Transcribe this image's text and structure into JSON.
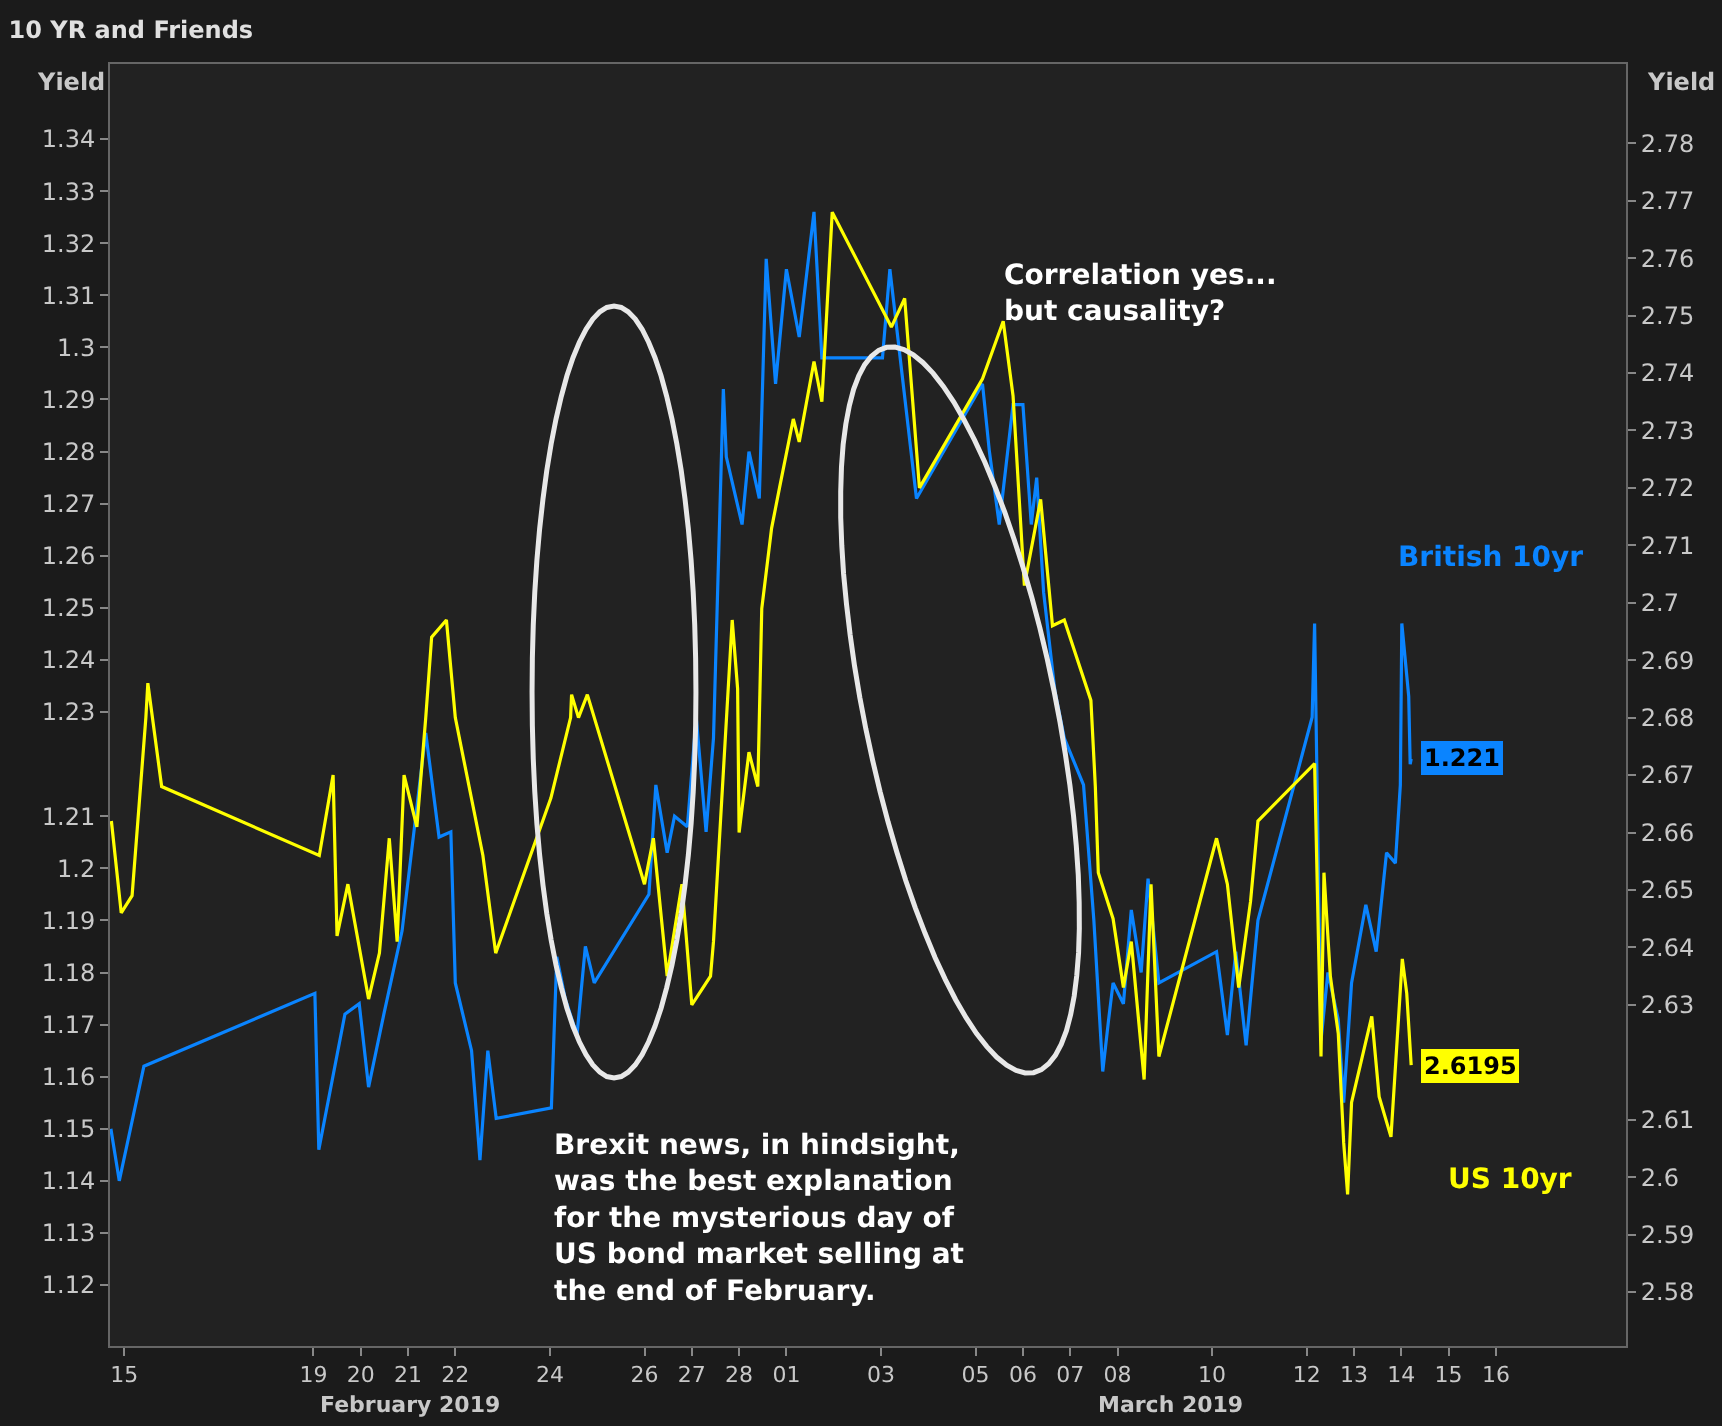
{
  "chart_data": {
    "type": "line",
    "title": "10 YR and Friends",
    "ylabel": "Yield",
    "y2label": "Yield",
    "xlim": [
      "2019-02-14T16:48",
      "2019-03-18T18:00"
    ],
    "xticks": [
      {
        "value": "2019-02-15",
        "label": "15"
      },
      {
        "value": "2019-02-19",
        "label": "19"
      },
      {
        "value": "2019-02-20",
        "label": "20"
      },
      {
        "value": "2019-02-21",
        "label": "21"
      },
      {
        "value": "2019-02-22",
        "label": "22"
      },
      {
        "value": "2019-02-24",
        "label": "24"
      },
      {
        "value": "2019-02-26",
        "label": "26"
      },
      {
        "value": "2019-02-27",
        "label": "27"
      },
      {
        "value": "2019-02-28",
        "label": "28"
      },
      {
        "value": "2019-03-01",
        "label": "01"
      },
      {
        "value": "2019-03-03",
        "label": "03"
      },
      {
        "value": "2019-03-05",
        "label": "05"
      },
      {
        "value": "2019-03-06",
        "label": "06"
      },
      {
        "value": "2019-03-07",
        "label": "07"
      },
      {
        "value": "2019-03-08",
        "label": "08"
      },
      {
        "value": "2019-03-10",
        "label": "10"
      },
      {
        "value": "2019-03-12",
        "label": "12"
      },
      {
        "value": "2019-03-13",
        "label": "13"
      },
      {
        "value": "2019-03-14",
        "label": "14"
      },
      {
        "value": "2019-03-15",
        "label": "15"
      },
      {
        "value": "2019-03-16",
        "label": "16"
      }
    ],
    "ylim": [
      1.1083,
      1.3544
    ],
    "yticks": [
      1.12,
      1.13,
      1.14,
      1.15,
      1.16,
      1.17,
      1.18,
      1.19,
      1.2,
      1.21,
      1.23,
      1.24,
      1.25,
      1.26,
      1.27,
      1.28,
      1.29,
      1.3,
      1.31,
      1.32,
      1.33,
      1.34
    ],
    "y2lim": [
      2.5706,
      2.7938
    ],
    "y2ticks": [
      2.58,
      2.59,
      2.6,
      2.61,
      2.63,
      2.64,
      2.65,
      2.66,
      2.67,
      2.68,
      2.69,
      2.7,
      2.71,
      2.72,
      2.73,
      2.74,
      2.75,
      2.76,
      2.77,
      2.78
    ],
    "grid": false,
    "legend": false,
    "marker": "none",
    "line_style": "solid",
    "series": [
      {
        "name": "US 10yr",
        "color": "#ffff00",
        "axis": "y2",
        "x": [
          "2019-02-14T17:30",
          "2019-02-14T22:30",
          "2019-02-15T04:00",
          "2019-02-15T11:00",
          "2019-02-15T12:00",
          "2019-02-15T19:00",
          "2019-02-19T03:00",
          "2019-02-19T10:00",
          "2019-02-19T12:00",
          "2019-02-19T17:30",
          "2019-02-20T04:00",
          "2019-02-20T09:30",
          "2019-02-20T14:30",
          "2019-02-20T18:30",
          "2019-02-20T22:00",
          "2019-02-21T04:30",
          "2019-02-21T09:00",
          "2019-02-21T12:00",
          "2019-02-21T19:30",
          "2019-02-22T00:00",
          "2019-02-22T14:00",
          "2019-02-22T20:30",
          "2019-02-24T00:30",
          "2019-02-24T10:30",
          "2019-02-24T11:00",
          "2019-02-24T14:30",
          "2019-02-24T19:00",
          "2019-02-26T00:00",
          "2019-02-26T04:30",
          "2019-02-26T11:30",
          "2019-02-26T19:00",
          "2019-02-27T00:00",
          "2019-02-27T09:30",
          "2019-02-27T11:00",
          "2019-02-27T20:30",
          "2019-02-27T23:15",
          "2019-02-28T00:00",
          "2019-02-28T05:00",
          "2019-02-28T09:30",
          "2019-02-28T11:30",
          "2019-02-28T16:30",
          "2019-02-28T20:30",
          "2019-03-01T03:30",
          "2019-03-01T06:30",
          "2019-03-01T14:00",
          "2019-03-01T18:00",
          "2019-03-01T23:15",
          "2019-03-03T05:15",
          "2019-03-03T12:00",
          "2019-03-03T19:30",
          "2019-03-05T03:30",
          "2019-03-05T14:00",
          "2019-03-05T19:00",
          "2019-03-06T00:45",
          "2019-03-06T09:00",
          "2019-03-06T15:00",
          "2019-03-06T21:00",
          "2019-03-07T10:30",
          "2019-03-07T12:45",
          "2019-03-07T14:15",
          "2019-03-07T21:45",
          "2019-03-08T03:00",
          "2019-03-08T07:00",
          "2019-03-08T13:30",
          "2019-03-08T17:00",
          "2019-03-08T21:00",
          "2019-03-10T02:15",
          "2019-03-10T07:45",
          "2019-03-10T13:30",
          "2019-03-10T19:30",
          "2019-03-10T23:15",
          "2019-03-12T04:00",
          "2019-03-12T07:15",
          "2019-03-12T08:45",
          "2019-03-12T12:00",
          "2019-03-12T16:00",
          "2019-03-12T18:45",
          "2019-03-12T20:45",
          "2019-03-12T22:45",
          "2019-03-13T09:00",
          "2019-03-13T12:45",
          "2019-03-13T18:45",
          "2019-03-14T00:30",
          "2019-03-14T02:45",
          "2019-03-14T05:00"
        ],
        "values": [
          2.662,
          2.646,
          2.649,
          2.68,
          2.686,
          2.668,
          2.656,
          2.67,
          2.642,
          2.651,
          2.631,
          2.639,
          2.659,
          2.641,
          2.67,
          2.661,
          2.68,
          2.694,
          2.697,
          2.68,
          2.656,
          2.639,
          2.666,
          2.68,
          2.684,
          2.68,
          2.684,
          2.651,
          2.659,
          2.635,
          2.651,
          2.63,
          2.635,
          2.641,
          2.697,
          2.685,
          2.66,
          2.674,
          2.668,
          2.699,
          2.713,
          2.72,
          2.732,
          2.728,
          2.742,
          2.735,
          2.768,
          2.748,
          2.753,
          2.72,
          2.739,
          2.749,
          2.736,
          2.703,
          2.718,
          2.696,
          2.697,
          2.683,
          2.668,
          2.653,
          2.645,
          2.633,
          2.641,
          2.617,
          2.651,
          2.621,
          2.659,
          2.651,
          2.633,
          2.648,
          2.662,
          2.672,
          2.621,
          2.653,
          2.635,
          2.625,
          2.606,
          2.597,
          2.613,
          2.628,
          2.614,
          2.607,
          2.638,
          2.632,
          2.6195
        ],
        "value_labels": [
          null,
          null,
          null,
          null,
          null,
          null,
          null,
          null,
          null,
          null,
          null,
          null,
          null,
          null,
          null,
          null,
          null,
          null,
          null,
          null,
          null,
          null,
          null,
          null,
          null,
          null,
          null,
          null,
          null,
          null,
          null,
          null,
          null,
          null,
          null,
          null,
          null,
          null,
          null,
          null,
          null,
          null,
          null,
          null,
          null,
          null,
          null,
          null,
          null,
          null,
          null,
          null,
          null,
          null,
          null,
          null,
          null,
          null,
          null,
          null,
          null,
          null,
          null,
          null,
          null,
          null,
          null,
          null,
          null,
          null,
          null,
          null,
          null,
          null,
          null,
          null,
          null,
          null,
          null,
          null,
          null,
          null,
          null,
          null,
          "2.6195"
        ]
      },
      {
        "name": "British 10yr",
        "color": "#0a84ff",
        "axis": "y",
        "x": [
          "2019-02-14T17:15",
          "2019-02-14T21:30",
          "2019-02-15T10:00",
          "2019-02-19T00:45",
          "2019-02-19T02:45",
          "2019-02-19T16:00",
          "2019-02-19T23:15",
          "2019-02-20T04:00",
          "2019-02-20T11:45",
          "2019-02-20T21:00",
          "2019-02-21T09:00",
          "2019-02-21T15:45",
          "2019-02-21T21:45",
          "2019-02-22T00:00",
          "2019-02-22T08:15",
          "2019-02-22T12:30",
          "2019-02-22T16:30",
          "2019-02-22T20:45",
          "2019-02-24T00:45",
          "2019-02-24T03:30",
          "2019-02-24T07:45",
          "2019-02-24T13:45",
          "2019-02-24T18:00",
          "2019-02-24T22:30",
          "2019-02-26T02:15",
          "2019-02-26T05:45",
          "2019-02-26T11:30",
          "2019-02-26T15:15",
          "2019-02-26T21:45",
          "2019-02-27T02:15",
          "2019-02-27T07:15",
          "2019-02-27T11:00",
          "2019-02-27T16:00",
          "2019-02-27T17:30",
          "2019-02-28T01:30",
          "2019-02-28T05:00",
          "2019-02-28T10:15",
          "2019-02-28T13:45",
          "2019-02-28T18:30",
          "2019-03-01T00:00",
          "2019-03-01T06:30",
          "2019-03-01T14:00",
          "2019-03-01T18:00",
          "2019-03-03T00:45",
          "2019-03-03T04:30",
          "2019-03-03T18:00",
          "2019-03-05T03:30",
          "2019-03-05T07:00",
          "2019-03-05T12:00",
          "2019-03-05T19:00",
          "2019-03-06T00:00",
          "2019-03-06T04:15",
          "2019-03-06T07:00",
          "2019-03-06T10:30",
          "2019-03-06T16:15",
          "2019-03-06T21:00",
          "2019-03-07T06:45",
          "2019-03-07T12:00",
          "2019-03-07T16:30",
          "2019-03-07T19:30",
          "2019-03-07T21:45",
          "2019-03-08T03:00",
          "2019-03-08T07:00",
          "2019-03-08T12:00",
          "2019-03-08T15:30",
          "2019-03-08T21:00",
          "2019-03-10T02:15",
          "2019-03-10T07:45",
          "2019-03-10T12:00",
          "2019-03-10T17:15",
          "2019-03-10T23:15",
          "2019-03-12T02:45",
          "2019-03-12T04:00",
          "2019-03-12T07:15",
          "2019-03-12T10:45",
          "2019-03-12T16:00",
          "2019-03-12T18:45",
          "2019-03-12T22:45",
          "2019-03-13T06:00",
          "2019-03-13T11:15",
          "2019-03-13T16:30",
          "2019-03-13T21:00",
          "2019-03-13T23:30",
          "2019-03-14T00:15",
          "2019-03-14T03:45",
          "2019-03-14T04:30",
          "2019-03-14T05:00"
        ],
        "values": [
          1.15,
          1.14,
          1.162,
          1.176,
          1.146,
          1.172,
          1.174,
          1.158,
          1.172,
          1.188,
          1.226,
          1.206,
          1.207,
          1.178,
          1.165,
          1.144,
          1.165,
          1.152,
          1.154,
          1.183,
          1.175,
          1.168,
          1.185,
          1.178,
          1.195,
          1.216,
          1.203,
          1.21,
          1.208,
          1.229,
          1.207,
          1.225,
          1.292,
          1.279,
          1.266,
          1.28,
          1.271,
          1.317,
          1.293,
          1.315,
          1.302,
          1.326,
          1.298,
          1.298,
          1.315,
          1.271,
          1.293,
          1.28,
          1.266,
          1.289,
          1.289,
          1.266,
          1.275,
          1.253,
          1.234,
          1.225,
          1.216,
          1.19,
          1.161,
          1.171,
          1.178,
          1.174,
          1.192,
          1.18,
          1.198,
          1.178,
          1.184,
          1.168,
          1.184,
          1.166,
          1.19,
          1.229,
          1.247,
          1.167,
          1.18,
          1.171,
          1.155,
          1.178,
          1.193,
          1.184,
          1.203,
          1.201,
          1.216,
          1.247,
          1.233,
          1.22,
          1.221
        ],
        "value_labels": [
          null,
          null,
          null,
          null,
          null,
          null,
          null,
          null,
          null,
          null,
          null,
          null,
          null,
          null,
          null,
          null,
          null,
          null,
          null,
          null,
          null,
          null,
          null,
          null,
          null,
          null,
          null,
          null,
          null,
          null,
          null,
          null,
          null,
          null,
          null,
          null,
          null,
          null,
          null,
          null,
          null,
          null,
          null,
          null,
          null,
          null,
          null,
          null,
          null,
          null,
          null,
          null,
          null,
          null,
          null,
          null,
          null,
          null,
          null,
          null,
          null,
          null,
          null,
          null,
          null,
          null,
          null,
          null,
          null,
          null,
          null,
          null,
          null,
          null,
          null,
          null,
          null,
          null,
          null,
          null,
          null,
          null,
          null,
          null,
          null,
          null,
          "1.221"
        ]
      }
    ],
    "annotations": [
      "Correlation yes...\nbut causality?",
      "Brexit news, in hindsight,\nwas the best explanation\nfor the mysterious day of\nUS bond market selling at\nthe end of February.",
      "February 2019",
      "March 2019"
    ]
  }
}
